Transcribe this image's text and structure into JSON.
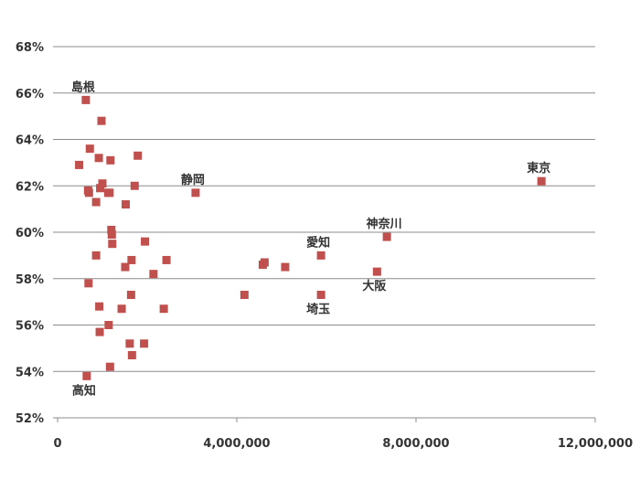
{
  "chart_data": {
    "type": "scatter",
    "title": "",
    "xlabel": "",
    "ylabel": "",
    "xlim": [
      0,
      12000000
    ],
    "ylim": [
      52,
      68
    ],
    "x_ticks": [
      0,
      4000000,
      8000000,
      12000000
    ],
    "x_tick_labels": [
      "0",
      "4,000,000",
      "8,000,000",
      "12,000,000"
    ],
    "y_ticks": [
      52,
      54,
      56,
      58,
      60,
      62,
      64,
      66,
      68
    ],
    "y_tick_labels": [
      "52%",
      "54%",
      "56%",
      "58%",
      "60%",
      "62%",
      "64%",
      "66%",
      "68%"
    ],
    "grid": "horizontal",
    "marker": "square",
    "marker_color": "#c0504d",
    "points": [
      {
        "x": 10800000,
        "y": 62.2,
        "label": "東京"
      },
      {
        "x": 7350000,
        "y": 59.8,
        "label": "神奈川"
      },
      {
        "x": 7130000,
        "y": 58.3,
        "label": "大阪"
      },
      {
        "x": 5880000,
        "y": 59.0,
        "label": "愛知"
      },
      {
        "x": 5880000,
        "y": 57.3,
        "label": "埼玉"
      },
      {
        "x": 3080000,
        "y": 61.7,
        "label": "静岡"
      },
      {
        "x": 630000,
        "y": 65.7,
        "label": "島根"
      },
      {
        "x": 650000,
        "y": 53.8,
        "label": "高知"
      },
      {
        "x": 5080000,
        "y": 58.5
      },
      {
        "x": 4620000,
        "y": 58.7
      },
      {
        "x": 4580000,
        "y": 58.6
      },
      {
        "x": 4170000,
        "y": 57.3
      },
      {
        "x": 480000,
        "y": 62.9
      },
      {
        "x": 720000,
        "y": 63.6
      },
      {
        "x": 980000,
        "y": 64.8
      },
      {
        "x": 920000,
        "y": 63.2
      },
      {
        "x": 1180000,
        "y": 63.1
      },
      {
        "x": 1790000,
        "y": 63.3
      },
      {
        "x": 680000,
        "y": 61.8
      },
      {
        "x": 700000,
        "y": 61.7
      },
      {
        "x": 1000000,
        "y": 62.1
      },
      {
        "x": 950000,
        "y": 61.9
      },
      {
        "x": 1130000,
        "y": 61.7
      },
      {
        "x": 1160000,
        "y": 61.7
      },
      {
        "x": 1720000,
        "y": 62.0
      },
      {
        "x": 860000,
        "y": 61.3
      },
      {
        "x": 1520000,
        "y": 61.2
      },
      {
        "x": 1200000,
        "y": 60.1
      },
      {
        "x": 1210000,
        "y": 59.9
      },
      {
        "x": 1220000,
        "y": 59.5
      },
      {
        "x": 1950000,
        "y": 59.6
      },
      {
        "x": 860000,
        "y": 59.0
      },
      {
        "x": 1650000,
        "y": 58.8
      },
      {
        "x": 1510000,
        "y": 58.5
      },
      {
        "x": 2430000,
        "y": 58.8
      },
      {
        "x": 2140000,
        "y": 58.2
      },
      {
        "x": 690000,
        "y": 57.8
      },
      {
        "x": 1640000,
        "y": 57.3
      },
      {
        "x": 930000,
        "y": 56.8
      },
      {
        "x": 1430000,
        "y": 56.7
      },
      {
        "x": 2370000,
        "y": 56.7
      },
      {
        "x": 1140000,
        "y": 56.0
      },
      {
        "x": 940000,
        "y": 55.7
      },
      {
        "x": 1610000,
        "y": 55.2
      },
      {
        "x": 1930000,
        "y": 55.2
      },
      {
        "x": 1660000,
        "y": 54.7
      },
      {
        "x": 1170000,
        "y": 54.2
      }
    ]
  }
}
